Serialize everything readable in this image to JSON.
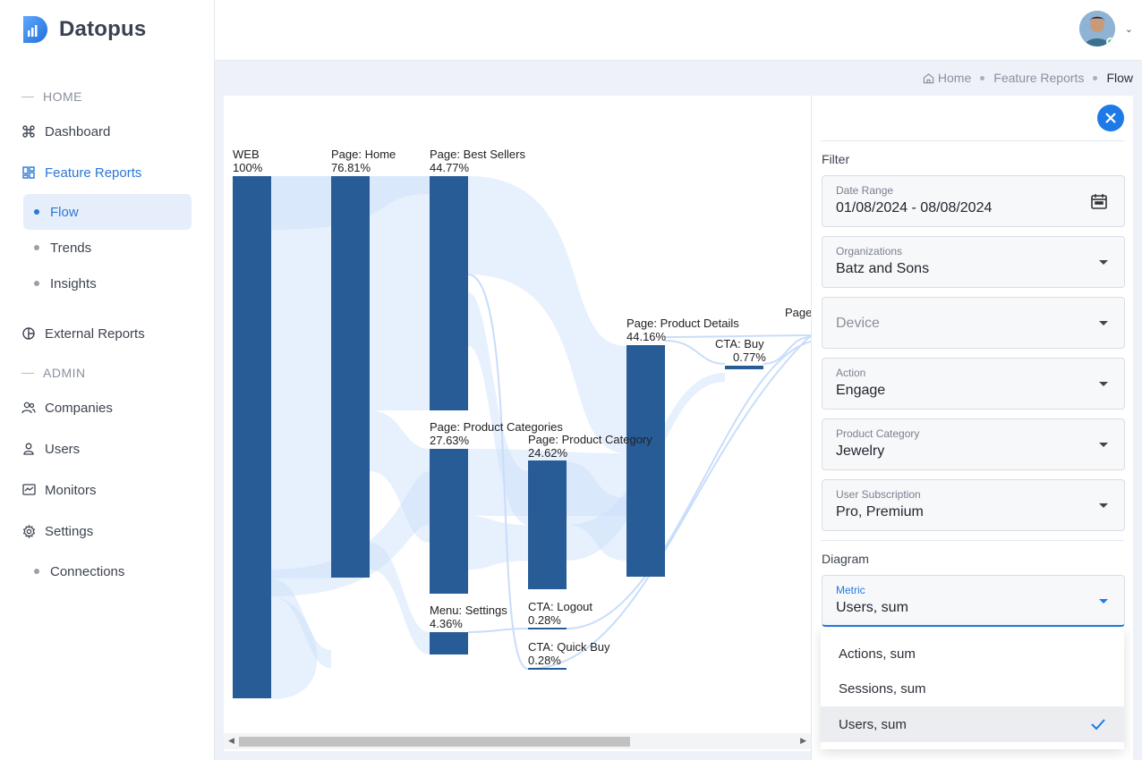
{
  "app": {
    "name": "Datopus"
  },
  "sidebar": {
    "home_label": "HOME",
    "admin_label": "ADMIN",
    "dashboard": "Dashboard",
    "feature_reports": "Feature Reports",
    "flow": "Flow",
    "trends": "Trends",
    "insights": "Insights",
    "external_reports": "External Reports",
    "companies": "Companies",
    "users": "Users",
    "monitors": "Monitors",
    "settings": "Settings",
    "connections": "Connections"
  },
  "breadcrumb": {
    "home": "Home",
    "section": "Feature Reports",
    "current": "Flow"
  },
  "filter": {
    "heading": "Filter",
    "date_range_label": "Date Range",
    "date_range_value": "01/08/2024 - 08/08/2024",
    "organizations_label": "Organizations",
    "organizations_value": "Batz and Sons",
    "device_placeholder": "Device",
    "action_label": "Action",
    "action_value": "Engage",
    "product_category_label": "Product Category",
    "product_category_value": "Jewelry",
    "user_subscription_label": "User Subscription",
    "user_subscription_value": "Pro, Premium",
    "diagram_heading": "Diagram",
    "metric_label": "Metric",
    "metric_value": "Users, sum",
    "metric_options": [
      "Actions, sum",
      "Sessions, sum",
      "Users, sum"
    ]
  },
  "colors": {
    "accent": "#1e7ae6",
    "node": "#285c96",
    "link": "#cfe1fb"
  },
  "chart_data": {
    "type": "sankey",
    "nodes": [
      {
        "name": "WEB",
        "value": "100%"
      },
      {
        "name": "Page: Home",
        "value": "76.81%"
      },
      {
        "name": "Page: Best Sellers",
        "value": "44.77%"
      },
      {
        "name": "Page: Product Categories",
        "value": "27.63%"
      },
      {
        "name": "Menu: Settings",
        "value": "4.36%"
      },
      {
        "name": "Page: Product Category",
        "value": "24.62%"
      },
      {
        "name": "CTA: Logout",
        "value": "0.28%"
      },
      {
        "name": "CTA: Quick Buy",
        "value": "0.28%"
      },
      {
        "name": "Page: Product Details",
        "value": "44.16%"
      },
      {
        "name": "CTA: Buy",
        "value": "0.77%"
      },
      {
        "name": "Page",
        "value": ""
      }
    ]
  }
}
